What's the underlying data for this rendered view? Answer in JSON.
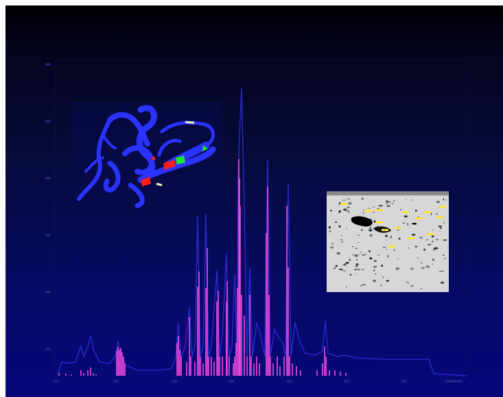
{
  "chart_data": {
    "type": "line",
    "title": "",
    "xlabel": "",
    "ylabel": "",
    "grid": false,
    "series": [
      {
        "values": []
      }
    ]
  },
  "colors": {
    "background_top": "#000000",
    "background_bottom": "#05077a",
    "envelope_line": "#2a2ad0",
    "peak_line": "#ff4fe6",
    "ribbon": "#2a32ff",
    "gel_background": "#d9d9d9",
    "gel_label": "#ffe23a"
  },
  "inset_images": [
    "protein-ribbon-structure",
    "2d-gel-electrophoresis"
  ]
}
